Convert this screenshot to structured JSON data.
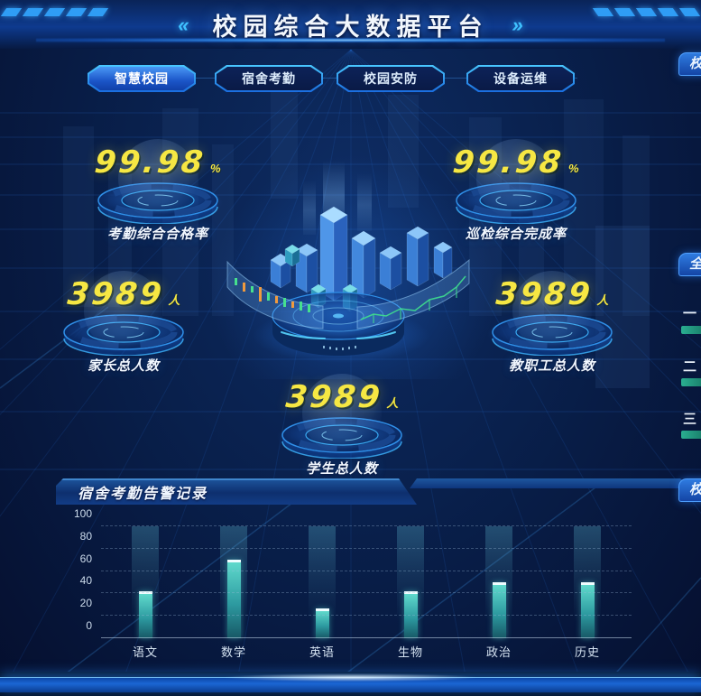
{
  "header": {
    "title": "校园综合大数据平台",
    "left_decor": "«",
    "right_decor": "»"
  },
  "tabs": {
    "items": [
      {
        "label": "智慧校园",
        "active": true
      },
      {
        "label": "宿舍考勤",
        "active": false
      },
      {
        "label": "校园安防",
        "active": false
      },
      {
        "label": "设备运维",
        "active": false
      }
    ]
  },
  "stats": {
    "attendance_rate": {
      "value": "99.98",
      "unit": "%",
      "label": "考勤综合合格率"
    },
    "inspection_rate": {
      "value": "99.98",
      "unit": "%",
      "label": "巡检综合完成率"
    },
    "parents_total": {
      "value": "3989",
      "unit": "人",
      "label": "家长总人数"
    },
    "staff_total": {
      "value": "3989",
      "unit": "人",
      "label": "教职工总人数"
    },
    "students_total": {
      "value": "3989",
      "unit": "人",
      "label": "学生总人数"
    }
  },
  "alert_panel": {
    "title": "宿舍考勤告警记录"
  },
  "chart_data": {
    "type": "bar",
    "title": "宿舍考勤告警记录",
    "categories": [
      "语文",
      "数学",
      "英语",
      "生物",
      "政治",
      "历史"
    ],
    "values": [
      42,
      70,
      27,
      42,
      50,
      50
    ],
    "xlabel": "",
    "ylabel": "",
    "ylim": [
      0,
      100
    ],
    "yticks": [
      0,
      20,
      40,
      60,
      80,
      100
    ],
    "grid": "dashed-horizontal",
    "legend": "none",
    "bar_color": "#3fd4c4"
  },
  "right_edge": {
    "panel_fragments": [
      {
        "text": "校"
      },
      {
        "text": "全"
      },
      {
        "text": "校"
      }
    ],
    "rank_markers": [
      "一",
      "二",
      "三"
    ]
  },
  "colors": {
    "accent_cyan": "#35c5ff",
    "number_yellow": "#f6e743",
    "tab_active_blue": "#1f6de0",
    "bar_teal": "#3fd4c4",
    "background_navy": "#09204c"
  }
}
